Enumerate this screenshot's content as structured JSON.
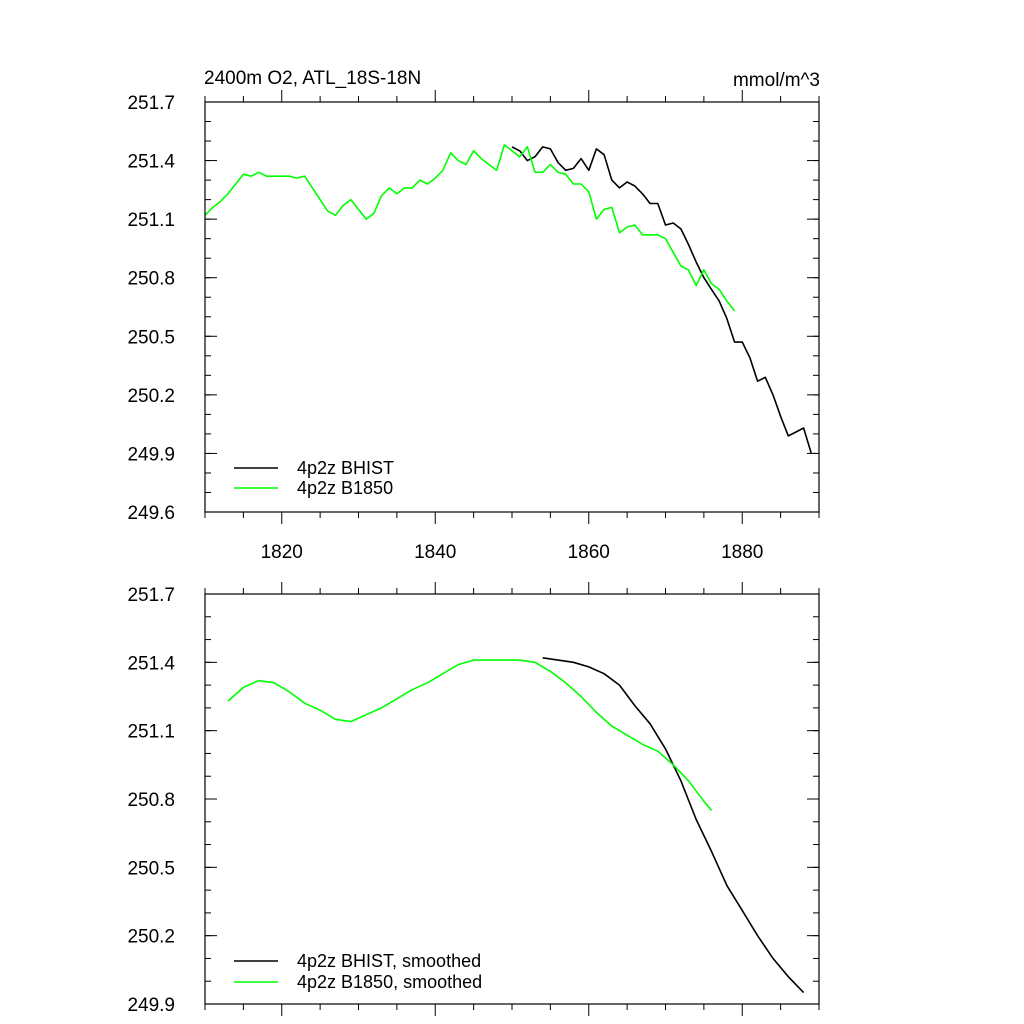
{
  "chart_data": [
    {
      "type": "line",
      "title": "2400m O2, ATL_18S-18N",
      "units": "mmol/m^3",
      "xlabel": "",
      "ylabel": "",
      "xlim": [
        1810,
        1890
      ],
      "ylim": [
        249.6,
        251.7
      ],
      "xticks": [
        1820,
        1840,
        1860,
        1880
      ],
      "xtick_labels": [
        "1820",
        "1840",
        "1860",
        "1880"
      ],
      "yticks": [
        249.6,
        249.9,
        250.2,
        250.5,
        250.8,
        251.1,
        251.4,
        251.7
      ],
      "ytick_labels": [
        "249.6",
        "249.9",
        "250.2",
        "250.5",
        "250.8",
        "251.1",
        "251.4",
        "251.7"
      ],
      "legend_position": "bottom-left",
      "series": [
        {
          "name": "4p2z BHIST",
          "color": "#000000",
          "x": [
            1850,
            1851,
            1852,
            1853,
            1854,
            1855,
            1856,
            1857,
            1858,
            1859,
            1860,
            1861,
            1862,
            1863,
            1864,
            1865,
            1866,
            1867,
            1868,
            1869,
            1870,
            1871,
            1872,
            1873,
            1874,
            1875,
            1876,
            1877,
            1878,
            1879,
            1880,
            1881,
            1882,
            1883,
            1884,
            1885,
            1886,
            1887,
            1888,
            1889
          ],
          "y": [
            251.47,
            251.45,
            251.4,
            251.42,
            251.47,
            251.46,
            251.39,
            251.35,
            251.36,
            251.41,
            251.35,
            251.46,
            251.43,
            251.3,
            251.26,
            251.29,
            251.27,
            251.23,
            251.18,
            251.18,
            251.07,
            251.08,
            251.05,
            250.97,
            250.88,
            250.8,
            250.74,
            250.68,
            250.59,
            250.47,
            250.47,
            250.39,
            250.27,
            250.29,
            250.2,
            250.09,
            249.99,
            250.01,
            250.03,
            249.9
          ]
        },
        {
          "name": "4p2z B1850",
          "color": "#00ff00",
          "x": [
            1810,
            1811,
            1812,
            1813,
            1814,
            1815,
            1816,
            1817,
            1818,
            1819,
            1820,
            1821,
            1822,
            1823,
            1824,
            1825,
            1826,
            1827,
            1828,
            1829,
            1830,
            1831,
            1832,
            1833,
            1834,
            1835,
            1836,
            1837,
            1838,
            1839,
            1840,
            1841,
            1842,
            1843,
            1844,
            1845,
            1846,
            1847,
            1848,
            1849,
            1850,
            1851,
            1852,
            1853,
            1854,
            1855,
            1856,
            1857,
            1858,
            1859,
            1860,
            1861,
            1862,
            1863,
            1864,
            1865,
            1866,
            1867,
            1868,
            1869,
            1870,
            1871,
            1872,
            1873,
            1874,
            1875,
            1876,
            1877,
            1878,
            1879
          ],
          "y": [
            251.12,
            251.16,
            251.19,
            251.23,
            251.28,
            251.33,
            251.32,
            251.34,
            251.32,
            251.32,
            251.32,
            251.32,
            251.31,
            251.32,
            251.26,
            251.2,
            251.14,
            251.12,
            251.17,
            251.2,
            251.15,
            251.1,
            251.13,
            251.22,
            251.26,
            251.23,
            251.26,
            251.26,
            251.3,
            251.28,
            251.31,
            251.35,
            251.44,
            251.4,
            251.38,
            251.45,
            251.41,
            251.38,
            251.35,
            251.48,
            251.45,
            251.42,
            251.47,
            251.34,
            251.34,
            251.38,
            251.34,
            251.33,
            251.28,
            251.28,
            251.24,
            251.1,
            251.15,
            251.16,
            251.03,
            251.06,
            251.07,
            251.02,
            251.02,
            251.02,
            251.0,
            250.93,
            250.86,
            250.84,
            250.76,
            250.84,
            250.77,
            250.74,
            250.68,
            250.63
          ]
        }
      ]
    },
    {
      "type": "line",
      "title": "",
      "xlabel": "",
      "ylabel": "",
      "xlim": [
        1810,
        1890
      ],
      "ylim": [
        249.9,
        251.7
      ],
      "xticks": [
        1820,
        1840,
        1860,
        1880
      ],
      "xtick_labels": [],
      "yticks": [
        249.9,
        250.2,
        250.5,
        250.8,
        251.1,
        251.4,
        251.7
      ],
      "ytick_labels": [
        "249.9",
        "250.2",
        "250.5",
        "250.8",
        "251.1",
        "251.4",
        "251.7"
      ],
      "legend_position": "bottom-left",
      "series": [
        {
          "name": "4p2z BHIST, smoothed",
          "color": "#000000",
          "x": [
            1854,
            1856,
            1858,
            1860,
            1862,
            1864,
            1866,
            1868,
            1870,
            1872,
            1874,
            1876,
            1878,
            1880,
            1882,
            1884,
            1886,
            1888
          ],
          "y": [
            251.42,
            251.41,
            251.4,
            251.38,
            251.35,
            251.3,
            251.21,
            251.13,
            251.02,
            250.88,
            250.71,
            250.57,
            250.42,
            250.31,
            250.2,
            250.1,
            250.02,
            249.95
          ]
        },
        {
          "name": "4p2z B1850, smoothed",
          "color": "#00ff00",
          "x": [
            1813,
            1815,
            1817,
            1819,
            1821,
            1823,
            1825,
            1827,
            1829,
            1831,
            1833,
            1835,
            1837,
            1839,
            1841,
            1843,
            1845,
            1847,
            1849,
            1851,
            1853,
            1855,
            1857,
            1859,
            1861,
            1863,
            1865,
            1867,
            1869,
            1871,
            1873,
            1875,
            1876
          ],
          "y": [
            251.23,
            251.29,
            251.32,
            251.31,
            251.27,
            251.22,
            251.19,
            251.15,
            251.14,
            251.17,
            251.2,
            251.24,
            251.28,
            251.31,
            251.35,
            251.39,
            251.41,
            251.41,
            251.41,
            251.41,
            251.4,
            251.36,
            251.31,
            251.25,
            251.18,
            251.12,
            251.08,
            251.04,
            251.01,
            250.95,
            250.88,
            250.79,
            250.75
          ]
        }
      ]
    }
  ]
}
